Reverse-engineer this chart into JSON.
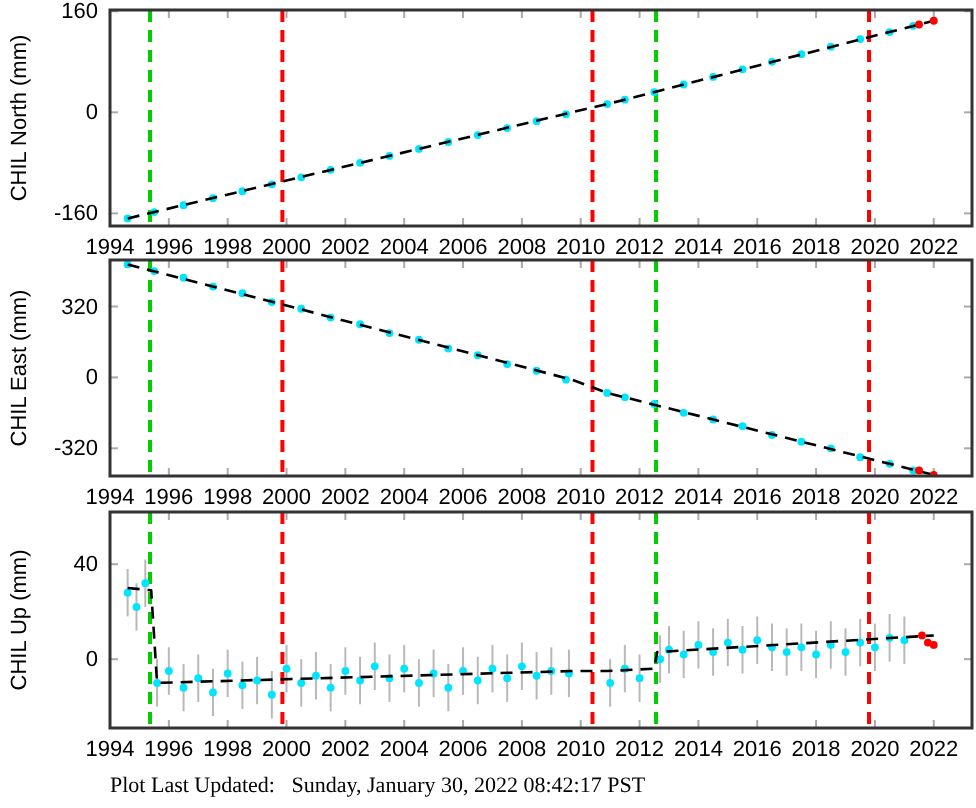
{
  "chart_data": [
    {
      "type": "scatter",
      "ylabel": "CHIL North (mm)",
      "xlim": [
        1994,
        2023.3
      ],
      "ylim": [
        -180,
        162
      ],
      "xticks": [
        1994,
        1996,
        1998,
        2000,
        2002,
        2004,
        2006,
        2008,
        2010,
        2012,
        2014,
        2016,
        2018,
        2020,
        2022
      ],
      "yticks": [
        -160,
        0,
        160
      ],
      "series": [
        {
          "marker": "circle",
          "color": "#00e5ff",
          "x": [
            1994.6,
            1995.5,
            1996.5,
            1997.5,
            1998.5,
            1999.5,
            2000.5,
            2001.5,
            2002.5,
            2003.5,
            2004.5,
            2005.5,
            2006.5,
            2007.5,
            2008.5,
            2009.5,
            2010.9,
            2011.5,
            2012.5,
            2013.5,
            2014.5,
            2015.5,
            2016.5,
            2017.5,
            2018.5,
            2019.5,
            2020.5,
            2021.3
          ],
          "values": [
            -168,
            -158,
            -147,
            -136,
            -125,
            -114,
            -103,
            -91,
            -80,
            -69,
            -58,
            -47,
            -36,
            -25,
            -14,
            -3,
            13,
            20,
            32,
            44,
            56,
            68,
            80,
            92,
            104,
            116,
            127,
            137
          ]
        },
        {
          "type": "line",
          "color": "#000000",
          "line_style": "dashed",
          "x": [
            1994.6,
            2009.7,
            2010.9,
            2022.0
          ],
          "values": [
            -168,
            0,
            13,
            145
          ]
        },
        {
          "marker": "circle",
          "color": "#ff0000",
          "x": [
            2021.5,
            2022.0
          ],
          "values": [
            139,
            145
          ]
        }
      ],
      "ref_lines": [
        {
          "axis": "x",
          "value": 1995.36,
          "color": "#00cc00",
          "line_style": "dashed"
        },
        {
          "axis": "x",
          "value": 1999.86,
          "color": "#ff0000",
          "line_style": "dashed"
        },
        {
          "axis": "x",
          "value": 2010.4,
          "color": "#ff0000",
          "line_style": "dashed"
        },
        {
          "axis": "x",
          "value": 2012.56,
          "color": "#00cc00",
          "line_style": "dashed"
        },
        {
          "axis": "x",
          "value": 2019.8,
          "color": "#ff0000",
          "line_style": "dashed"
        }
      ]
    },
    {
      "type": "scatter",
      "ylabel": "CHIL East (mm)",
      "xlim": [
        1994,
        2023.3
      ],
      "ylim": [
        -445,
        530
      ],
      "xticks": [
        1994,
        1996,
        1998,
        2000,
        2002,
        2004,
        2006,
        2008,
        2010,
        2012,
        2014,
        2016,
        2018,
        2020,
        2022
      ],
      "yticks": [
        -320,
        0,
        320
      ],
      "series": [
        {
          "marker": "circle",
          "color": "#00e5ff",
          "x": [
            1994.6,
            1995.5,
            1996.5,
            1997.5,
            1998.5,
            1999.5,
            2000.5,
            2001.5,
            2002.5,
            2003.5,
            2004.5,
            2005.5,
            2006.5,
            2007.5,
            2008.5,
            2009.5,
            2010.9,
            2011.5,
            2012.5,
            2013.5,
            2014.5,
            2015.5,
            2016.5,
            2017.5,
            2018.5,
            2019.5,
            2020.5,
            2021.3
          ],
          "values": [
            510,
            480,
            450,
            410,
            380,
            340,
            310,
            270,
            240,
            200,
            170,
            130,
            100,
            60,
            30,
            -10,
            -70,
            -90,
            -120,
            -160,
            -190,
            -220,
            -260,
            -290,
            -320,
            -360,
            -390,
            -420
          ]
        },
        {
          "type": "line",
          "color": "#000000",
          "line_style": "dashed",
          "x": [
            1994.6,
            2009.7,
            2010.9,
            2022.0
          ],
          "values": [
            510,
            -10,
            -70,
            -440
          ]
        },
        {
          "marker": "circle",
          "color": "#ff0000",
          "x": [
            2021.5,
            2022.0
          ],
          "values": [
            -420,
            -440
          ]
        }
      ],
      "ref_lines": [
        {
          "axis": "x",
          "value": 1995.36,
          "color": "#00cc00",
          "line_style": "dashed"
        },
        {
          "axis": "x",
          "value": 1999.86,
          "color": "#ff0000",
          "line_style": "dashed"
        },
        {
          "axis": "x",
          "value": 2010.4,
          "color": "#ff0000",
          "line_style": "dashed"
        },
        {
          "axis": "x",
          "value": 2012.56,
          "color": "#00cc00",
          "line_style": "dashed"
        },
        {
          "axis": "x",
          "value": 2019.8,
          "color": "#ff0000",
          "line_style": "dashed"
        }
      ]
    },
    {
      "type": "scatter",
      "ylabel": "CHIL Up (mm)",
      "xlim": [
        1994,
        2023.3
      ],
      "ylim": [
        -29,
        62
      ],
      "xticks": [
        1994,
        1996,
        1998,
        2000,
        2002,
        2004,
        2006,
        2008,
        2010,
        2012,
        2014,
        2016,
        2018,
        2020,
        2022
      ],
      "yticks": [
        0,
        40
      ],
      "annotations": [
        "Plot Last Updated:   Sunday, January 30, 2022 08:42:17 PST"
      ],
      "series": [
        {
          "marker": "circle",
          "color": "#00e5ff",
          "x": [
            1994.6,
            1994.9,
            1995.2,
            1995.6,
            1996.0,
            1996.5,
            1997.0,
            1997.5,
            1998.0,
            1998.5,
            1999.0,
            1999.5,
            2000.0,
            2000.5,
            2001.0,
            2001.5,
            2002.0,
            2002.5,
            2003.0,
            2003.5,
            2004.0,
            2004.5,
            2005.0,
            2005.5,
            2006.0,
            2006.5,
            2007.0,
            2007.5,
            2008.0,
            2008.5,
            2009.0,
            2009.6,
            2011.0,
            2011.5,
            2012.0,
            2012.7,
            2013.0,
            2013.5,
            2014.0,
            2014.5,
            2015.0,
            2015.5,
            2016.0,
            2016.5,
            2017.0,
            2017.5,
            2018.0,
            2018.5,
            2019.0,
            2019.5,
            2020.0,
            2020.5,
            2021.0
          ],
          "values": [
            28,
            22,
            32,
            -10,
            -5,
            -12,
            -8,
            -14,
            -6,
            -11,
            -9,
            -15,
            -4,
            -10,
            -7,
            -12,
            -5,
            -9,
            -3,
            -8,
            -4,
            -10,
            -6,
            -12,
            -5,
            -9,
            -4,
            -8,
            -3,
            -7,
            -5,
            -6,
            -10,
            -4,
            -8,
            0,
            4,
            2,
            6,
            3,
            7,
            4,
            8,
            5,
            3,
            5,
            2,
            6,
            3,
            7,
            5,
            9,
            8
          ],
          "errors": [
            10,
            10,
            10,
            10,
            10,
            10,
            10,
            10,
            10,
            10,
            10,
            10,
            10,
            10,
            10,
            10,
            10,
            10,
            10,
            10,
            10,
            10,
            10,
            10,
            10,
            10,
            10,
            10,
            10,
            10,
            10,
            10,
            10,
            10,
            10,
            10,
            10,
            10,
            10,
            10,
            10,
            10,
            10,
            10,
            10,
            10,
            10,
            10,
            10,
            10,
            10,
            10,
            10
          ]
        },
        {
          "type": "line",
          "color": "#000000",
          "line_style": "dashed",
          "x": [
            1994.6,
            1995.4,
            1995.6,
            2009.7,
            2010.9,
            2012.5,
            2012.6,
            2022.0
          ],
          "values": [
            30,
            29,
            -10,
            -5,
            -5,
            -4,
            3,
            10
          ]
        },
        {
          "marker": "circle",
          "color": "#ff0000",
          "x": [
            2021.6,
            2021.8,
            2022.0
          ],
          "values": [
            10,
            7,
            6
          ]
        }
      ],
      "ref_lines": [
        {
          "axis": "x",
          "value": 1995.36,
          "color": "#00cc00",
          "line_style": "dashed"
        },
        {
          "axis": "x",
          "value": 1999.86,
          "color": "#ff0000",
          "line_style": "dashed"
        },
        {
          "axis": "x",
          "value": 2010.4,
          "color": "#ff0000",
          "line_style": "dashed"
        },
        {
          "axis": "x",
          "value": 2012.56,
          "color": "#00cc00",
          "line_style": "dashed"
        },
        {
          "axis": "x",
          "value": 2019.8,
          "color": "#ff0000",
          "line_style": "dashed"
        }
      ]
    }
  ]
}
